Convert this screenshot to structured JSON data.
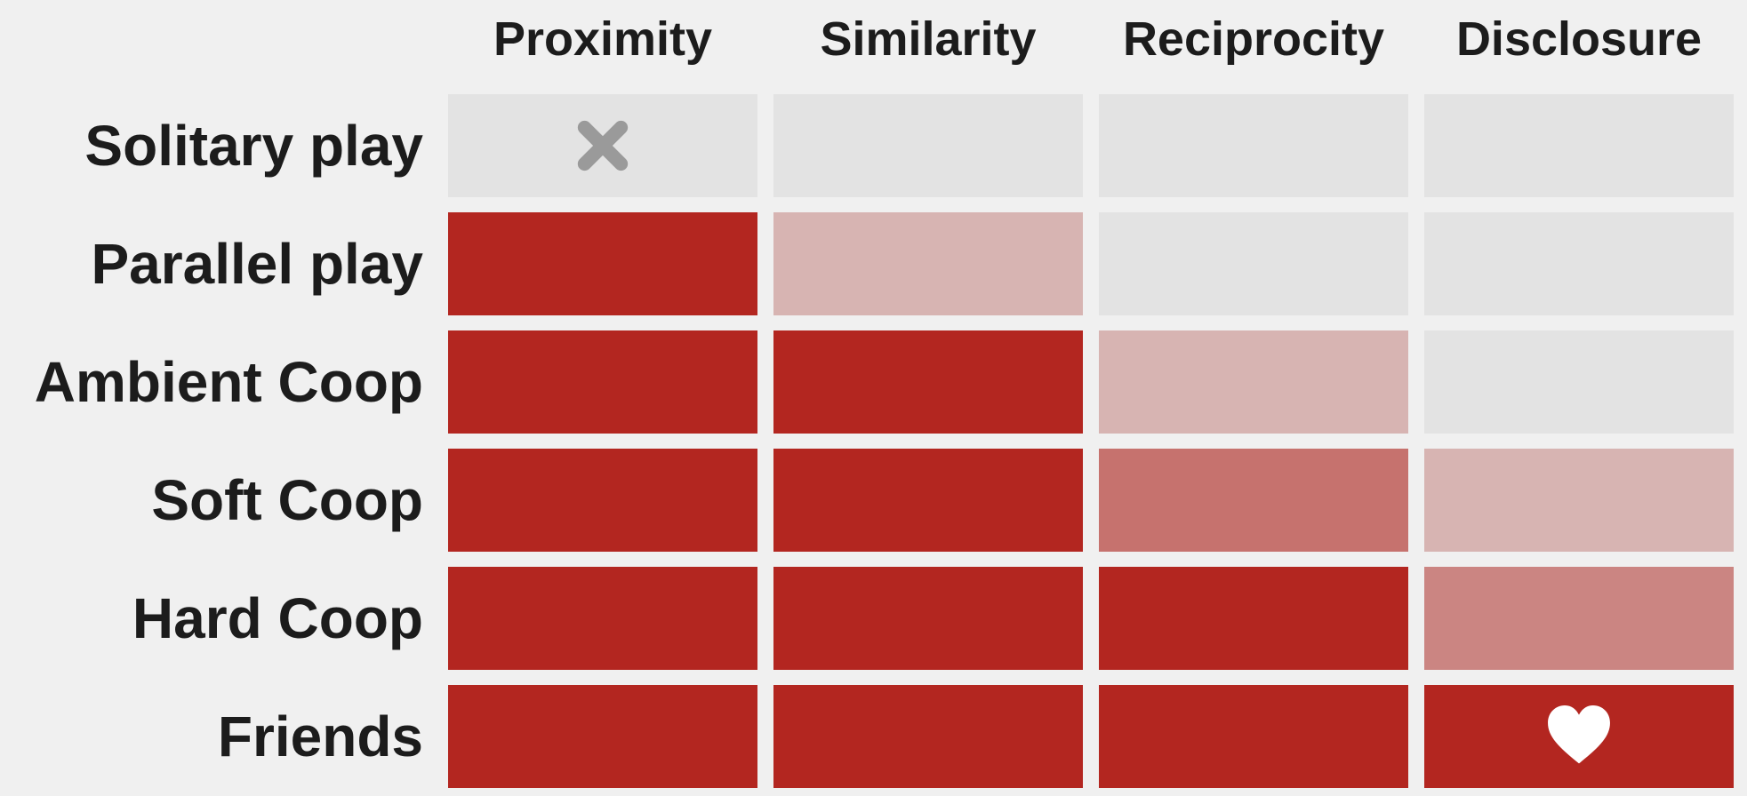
{
  "chart_data": {
    "type": "heatmap",
    "title": "",
    "columns": [
      "Proximity",
      "Similarity",
      "Reciprocity",
      "Disclosure"
    ],
    "rows": [
      "Solitary play",
      "Parallel play",
      "Ambient Coop",
      "Soft Coop",
      "Hard Coop",
      "Friends"
    ],
    "values": [
      [
        0,
        0,
        0,
        0
      ],
      [
        1,
        0.25,
        0,
        0
      ],
      [
        1,
        1,
        0.25,
        0
      ],
      [
        1,
        1,
        0.6,
        0.25
      ],
      [
        1,
        1,
        1,
        0.5
      ],
      [
        1,
        1,
        1,
        1
      ]
    ],
    "icons": [
      {
        "row": 0,
        "col": 0,
        "icon": "x-mark-icon"
      },
      {
        "row": 5,
        "col": 3,
        "icon": "heart-icon"
      }
    ],
    "colors": {
      "low": "#e3e3e3",
      "high": "#b32620",
      "x_mark": "#9a9a9a",
      "heart": "#ffffff",
      "background": "#f0f0f0",
      "text": "#1c1c1c"
    },
    "value_range": [
      0,
      1
    ]
  }
}
